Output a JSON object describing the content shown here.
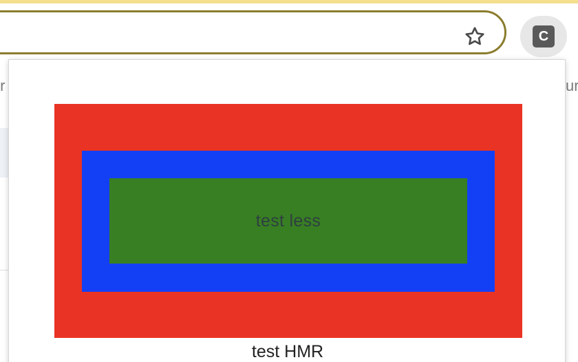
{
  "browser": {
    "top_strip_color": "#f3df8c",
    "bookmark_icon": "star-outline-icon",
    "extension_letter": "C",
    "extension_icon": "c-square-icon"
  },
  "background_page": {
    "left_fragment": "tr",
    "right_fragment": "ur"
  },
  "popup": {
    "boxes": {
      "outer_color": "#e93324",
      "middle_color": "#1440f5",
      "inner_color": "#387f23",
      "inner_text": "test less"
    },
    "caption": "test HMR"
  }
}
